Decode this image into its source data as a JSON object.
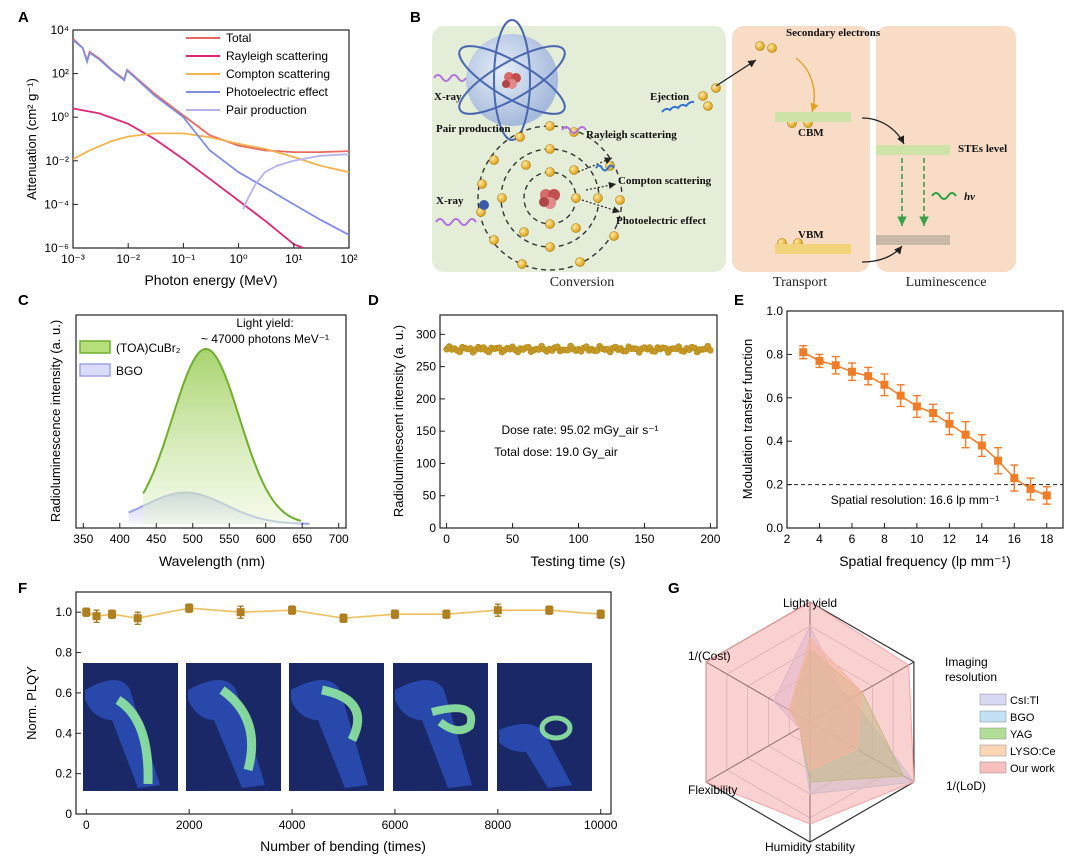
{
  "panel_labels": [
    "A",
    "B",
    "C",
    "D",
    "E",
    "F",
    "G"
  ],
  "colors": {
    "total": "#e8685f",
    "rayleigh": "#e0267a",
    "compton": "#f3b44f",
    "photo": "#7f8ee0",
    "pair": "#b8b2ea",
    "toa": "#6fae2e",
    "toa_fill": "#b5df7a",
    "bgo_c": "#9ea6e8",
    "bgo_fill": "#d9dbf7",
    "dots": "#b8860b",
    "mtf": "#f07c28",
    "csi": "#c8c6ef",
    "bgo_r": "#a8d4f0",
    "yag": "#8ed06a",
    "lyso": "#f8c596",
    "ours": "#f6a3a3"
  },
  "panelB": {
    "xray_top": "X-ray",
    "xray_left": "X-ray",
    "pair_production": "Pair production",
    "rayleigh": "Rayleigh scattering",
    "compton": "Compton scattering",
    "photoelectric": "Photoelectric effect",
    "ejection": "Ejection",
    "secondary": "Secondary electrons",
    "cbm": "CBM",
    "vbm": "VBM",
    "stes": "STEs level",
    "hv": "hν",
    "conversion": "Conversion",
    "transport": "Transport",
    "luminescence": "Luminescence"
  },
  "panelC_text": {
    "light_yield": "Light yield:",
    "photons": "~ 47000 photons MeV⁻¹"
  },
  "panelD_text": {
    "dose_rate": "Dose rate: 95.02 mGy_air s⁻¹",
    "total_dose": "Total dose: 19.0 Gy_air"
  },
  "panelE_text": {
    "res": "Spatial resolution: 16.6 lp mm⁻¹"
  },
  "chart_data": [
    {
      "panel": "A",
      "type": "line",
      "xlabel": "Photon energy (MeV)",
      "ylabel": "Attenuation (cm² g⁻¹)",
      "xscale": "log",
      "yscale": "log",
      "xlim": [
        0.001,
        100
      ],
      "ylim": [
        1e-06,
        10000.0
      ],
      "xticks": [
        "10⁻³",
        "10⁻²",
        "10⁻¹",
        "10⁰",
        "10¹",
        "10²"
      ],
      "yticks": [
        "10⁻⁶",
        "10⁻⁴",
        "10⁻²",
        "10⁰",
        "10²",
        "10⁴"
      ],
      "series": [
        {
          "name": "Total",
          "key": "total",
          "points": [
            [
              0.001,
              4000
            ],
            [
              0.0015,
              1500
            ],
            [
              0.0018,
              400
            ],
            [
              0.002,
              1000
            ],
            [
              0.003,
              500
            ],
            [
              0.005,
              150
            ],
            [
              0.0085,
              55
            ],
            [
              0.0095,
              150
            ],
            [
              0.015,
              55
            ],
            [
              0.03,
              12
            ],
            [
              0.1,
              1.2
            ],
            [
              0.3,
              0.15
            ],
            [
              1,
              0.05
            ],
            [
              3,
              0.03
            ],
            [
              10,
              0.025
            ],
            [
              30,
              0.025
            ],
            [
              100,
              0.028
            ]
          ]
        },
        {
          "name": "Rayleigh scattering",
          "key": "rayleigh",
          "points": [
            [
              0.001,
              2.5
            ],
            [
              0.003,
              1.5
            ],
            [
              0.01,
              0.5
            ],
            [
              0.03,
              0.1
            ],
            [
              0.1,
              0.012
            ],
            [
              0.3,
              0.0015
            ],
            [
              1,
              0.00015
            ],
            [
              3,
              1.8e-05
            ],
            [
              10,
              1.5e-06
            ],
            [
              15,
              1e-06
            ]
          ]
        },
        {
          "name": "Compton scattering",
          "key": "compton",
          "points": [
            [
              0.001,
              0.012
            ],
            [
              0.002,
              0.03
            ],
            [
              0.005,
              0.08
            ],
            [
              0.01,
              0.13
            ],
            [
              0.03,
              0.18
            ],
            [
              0.1,
              0.18
            ],
            [
              0.3,
              0.12
            ],
            [
              1,
              0.06
            ],
            [
              3,
              0.035
            ],
            [
              10,
              0.015
            ],
            [
              30,
              0.006
            ],
            [
              100,
              0.003
            ]
          ]
        },
        {
          "name": "Photoelectric effect",
          "key": "photo",
          "points": [
            [
              0.001,
              3500
            ],
            [
              0.0015,
              1500
            ],
            [
              0.0018,
              350
            ],
            [
              0.002,
              900
            ],
            [
              0.003,
              450
            ],
            [
              0.005,
              140
            ],
            [
              0.0085,
              50
            ],
            [
              0.0095,
              140
            ],
            [
              0.015,
              50
            ],
            [
              0.03,
              10
            ],
            [
              0.1,
              1.0
            ],
            [
              0.3,
              0.03
            ],
            [
              1,
              0.003
            ],
            [
              3,
              0.0006
            ],
            [
              10,
              0.0001
            ],
            [
              30,
              2e-05
            ],
            [
              100,
              4e-06
            ]
          ]
        },
        {
          "name": "Pair production",
          "key": "pair",
          "points": [
            [
              1.2,
              6e-05
            ],
            [
              1.5,
              0.0002
            ],
            [
              2,
              0.0008
            ],
            [
              3,
              0.003
            ],
            [
              5,
              0.006
            ],
            [
              10,
              0.01
            ],
            [
              30,
              0.017
            ],
            [
              100,
              0.02
            ]
          ]
        }
      ]
    },
    {
      "panel": "C",
      "type": "area",
      "xlabel": "Wavelength (nm)",
      "ylabel": "Radioluminescence intensity (a. u.)",
      "xlim": [
        340,
        710
      ],
      "xticks": [
        350,
        400,
        450,
        500,
        550,
        600,
        650,
        700
      ],
      "series": [
        {
          "name": "(TOA)CuBr₂",
          "key": "toa",
          "peak": 518,
          "sigma": 46,
          "amp": 1.0,
          "start": 432,
          "end": 648
        },
        {
          "name": "BGO",
          "key": "bgo",
          "peak": 490,
          "sigma": 55,
          "amp": 0.18,
          "start": 412,
          "end": 660
        }
      ]
    },
    {
      "panel": "D",
      "type": "scatter",
      "xlabel": "Testing time (s)",
      "ylabel": "Radioluminescent intensity (a. u.)",
      "xlim": [
        -5,
        205
      ],
      "ylim": [
        0,
        330
      ],
      "xticks": [
        0,
        50,
        100,
        150,
        200
      ],
      "yticks": [
        0,
        50,
        100,
        150,
        200,
        250,
        300
      ],
      "x_start": 0,
      "x_end": 200,
      "x_step": 2,
      "y_mean": 277,
      "y_amp": 5
    },
    {
      "panel": "E",
      "type": "scatter",
      "xlabel": "Spatial frequency (lp mm⁻¹)",
      "ylabel": "Modulation transfer function",
      "xlim": [
        2,
        19
      ],
      "ylim": [
        0,
        1.0
      ],
      "xticks": [
        2,
        4,
        6,
        8,
        10,
        12,
        14,
        16,
        18
      ],
      "yticks": [
        0,
        0.2,
        0.4,
        0.6,
        0.8,
        1.0
      ],
      "x": [
        3,
        4,
        5,
        6,
        7,
        8,
        9,
        10,
        11,
        12,
        13,
        14,
        15,
        16,
        17,
        18
      ],
      "y": [
        0.81,
        0.77,
        0.75,
        0.72,
        0.7,
        0.66,
        0.61,
        0.56,
        0.53,
        0.48,
        0.43,
        0.38,
        0.31,
        0.23,
        0.18,
        0.15
      ],
      "err": [
        0.03,
        0.03,
        0.04,
        0.04,
        0.04,
        0.05,
        0.05,
        0.05,
        0.04,
        0.05,
        0.06,
        0.05,
        0.06,
        0.06,
        0.05,
        0.04
      ],
      "threshold": 0.2
    },
    {
      "panel": "F",
      "type": "line",
      "xlabel": "Number of bending (times)",
      "ylabel": "Norm. PLQY",
      "xlim": [
        -200,
        10200
      ],
      "ylim": [
        0,
        1.1
      ],
      "xticks": [
        0,
        2000,
        4000,
        6000,
        8000,
        10000
      ],
      "yticks": [
        0,
        0.2,
        0.4,
        0.6,
        0.8,
        1.0
      ],
      "x": [
        0,
        200,
        500,
        1000,
        2000,
        3000,
        4000,
        5000,
        6000,
        7000,
        8000,
        9000,
        10000
      ],
      "y": [
        1.0,
        0.98,
        0.99,
        0.97,
        1.02,
        1.0,
        1.01,
        0.97,
        0.99,
        0.99,
        1.01,
        1.01,
        0.99
      ],
      "err": [
        0.02,
        0.03,
        0.02,
        0.03,
        0.02,
        0.03,
        0.02,
        0.02,
        0.02,
        0.02,
        0.03,
        0.02,
        0.02
      ]
    },
    {
      "panel": "G",
      "type": "radar",
      "axes": [
        "Light yield",
        "Imaging resolution",
        "1/(LoD)",
        "Humidity stability",
        "Flexibility",
        "1/(Cost)"
      ],
      "series": [
        {
          "name": "CsI:Tl",
          "key": "csi",
          "values": [
            0.8,
            0.35,
            0.2,
            0.35,
            0.1,
            0.35
          ]
        },
        {
          "name": "BGO",
          "key": "bgo_r",
          "values": [
            0.45,
            0.4,
            1.0,
            0.6,
            0.1,
            0.15
          ]
        },
        {
          "name": "YAG",
          "key": "yag",
          "values": [
            0.6,
            0.5,
            0.9,
            0.5,
            0.1,
            0.2
          ]
        },
        {
          "name": "LYSO:Ce",
          "key": "lyso",
          "values": [
            0.7,
            0.5,
            0.45,
            0.4,
            0.1,
            0.2
          ]
        },
        {
          "name": "Our work",
          "key": "ours",
          "values": [
            1.0,
            0.95,
            1.0,
            0.85,
            1.0,
            1.0
          ]
        }
      ]
    }
  ]
}
